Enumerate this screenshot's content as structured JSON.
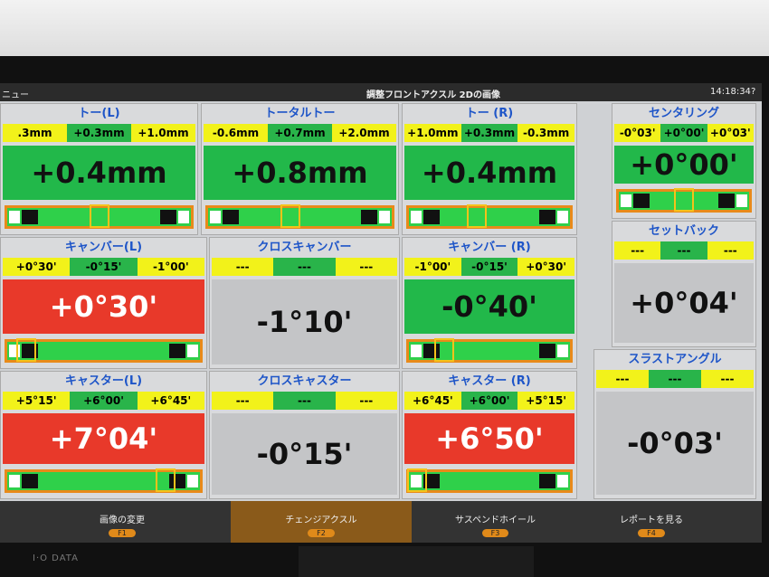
{
  "brand": "I·O DATA",
  "header": {
    "menu": "ニュー",
    "title": "調整フロントアクスル 2Dの画像",
    "time": "14:18:34",
    "help": "?"
  },
  "panels": [
    {
      "title": "トー(L)",
      "limits": [
        ".3mm",
        "+0.3mm",
        "+1.0mm"
      ],
      "value": "+0.4mm",
      "color": "#22b84a"
    },
    {
      "title": "トータルトー",
      "limits": [
        "-0.6mm",
        "+0.7mm",
        "+2.0mm"
      ],
      "value": "+0.8mm",
      "color": "#22b84a"
    },
    {
      "title": "トー (R)",
      "limits": [
        "+1.0mm",
        "+0.3mm",
        "-0.3mm"
      ],
      "value": "+0.4mm",
      "color": "#22b84a"
    },
    {
      "title": "センタリング",
      "limits": [
        "-0°03'",
        "+0°00'",
        "+0°03'"
      ],
      "value": "+0°00'",
      "color": "#22b84a"
    },
    {
      "title": "キャンバー(L)",
      "limits": [
        "+0°30'",
        "-0°15'",
        "-1°00'"
      ],
      "value": "+0°30'",
      "color": "#e8392a"
    },
    {
      "title": "クロスキャンバー",
      "limits": [
        "---",
        "---",
        "---"
      ],
      "value": "-1°10'",
      "color": "#c4c5c7"
    },
    {
      "title": "キャンバー (R)",
      "limits": [
        "-1°00'",
        "-0°15'",
        "+0°30'"
      ],
      "value": "-0°40'",
      "color": "#22b84a"
    },
    {
      "title": "セットバック",
      "limits": [
        "---",
        "---",
        "---"
      ],
      "value": "+0°04'",
      "color": "#c4c5c7"
    },
    {
      "title": "キャスター(L)",
      "limits": [
        "+5°15'",
        "+6°00'",
        "+6°45'"
      ],
      "value": "+7°04'",
      "color": "#e8392a"
    },
    {
      "title": "クロスキャスター",
      "limits": [
        "---",
        "---",
        "---"
      ],
      "value": "-0°15'",
      "color": "#c4c5c7"
    },
    {
      "title": "キャスター (R)",
      "limits": [
        "+6°45'",
        "+6°00'",
        "+5°15'"
      ],
      "value": "+6°50'",
      "color": "#e8392a"
    },
    {
      "title": "スラストアングル",
      "limits": [
        "---",
        "---",
        "---"
      ],
      "value": "-0°03'",
      "color": "#c4c5c7"
    }
  ],
  "buttons": [
    {
      "label": "画像の変更",
      "key": "F1"
    },
    {
      "label": "チェンジアクスル",
      "key": "F2"
    },
    {
      "label": "サスペンドホイール",
      "key": "F3"
    },
    {
      "label": "レポートを見る",
      "key": "F4"
    }
  ]
}
